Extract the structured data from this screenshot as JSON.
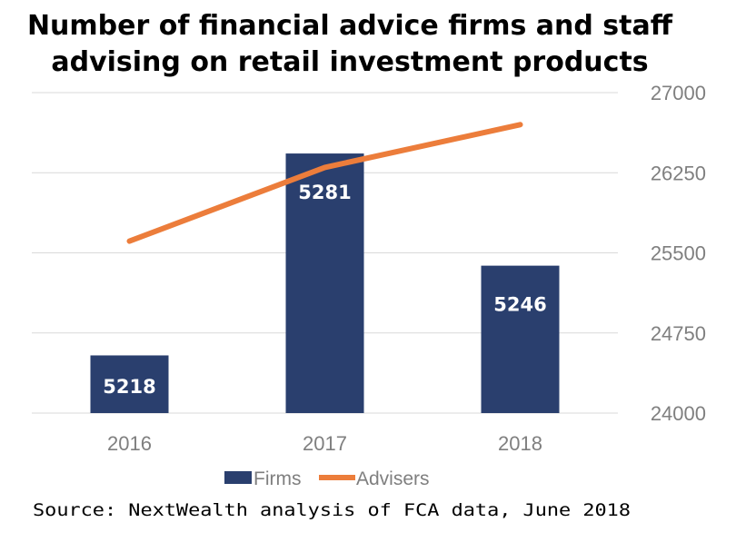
{
  "title_lines": [
    "Number of financial advice firms and staff",
    "advising on retail investment products"
  ],
  "source": "Source: NextWealth analysis of FCA data, June 2018",
  "colors": {
    "firms": "#2a3f6e",
    "advisers": "#ec7d3b",
    "grid": "#d9d9d9",
    "tick_text": "#7f7f7f"
  },
  "chart_data": {
    "type": "bar",
    "title": "Number of financial advice firms and staff advising on retail investment products",
    "categories": [
      "2016",
      "2017",
      "2018"
    ],
    "series": [
      {
        "name": "Firms",
        "type": "bar",
        "axis": "left",
        "values": [
          5218,
          5281,
          5246
        ],
        "data_labels": [
          "5218",
          "5281",
          "5246"
        ]
      },
      {
        "name": "Advisers",
        "type": "line",
        "axis": "right",
        "values": [
          25610,
          26300,
          26700
        ]
      }
    ],
    "left_axis": {
      "visible": false,
      "range": [
        5200,
        5300
      ]
    },
    "right_axis": {
      "visible": true,
      "range": [
        24000,
        27000
      ],
      "ticks": [
        "24000",
        "24750",
        "25500",
        "26250",
        "27000"
      ]
    },
    "grid": true,
    "legend": {
      "position": "bottom",
      "items": [
        "Firms",
        "Advisers"
      ]
    }
  }
}
